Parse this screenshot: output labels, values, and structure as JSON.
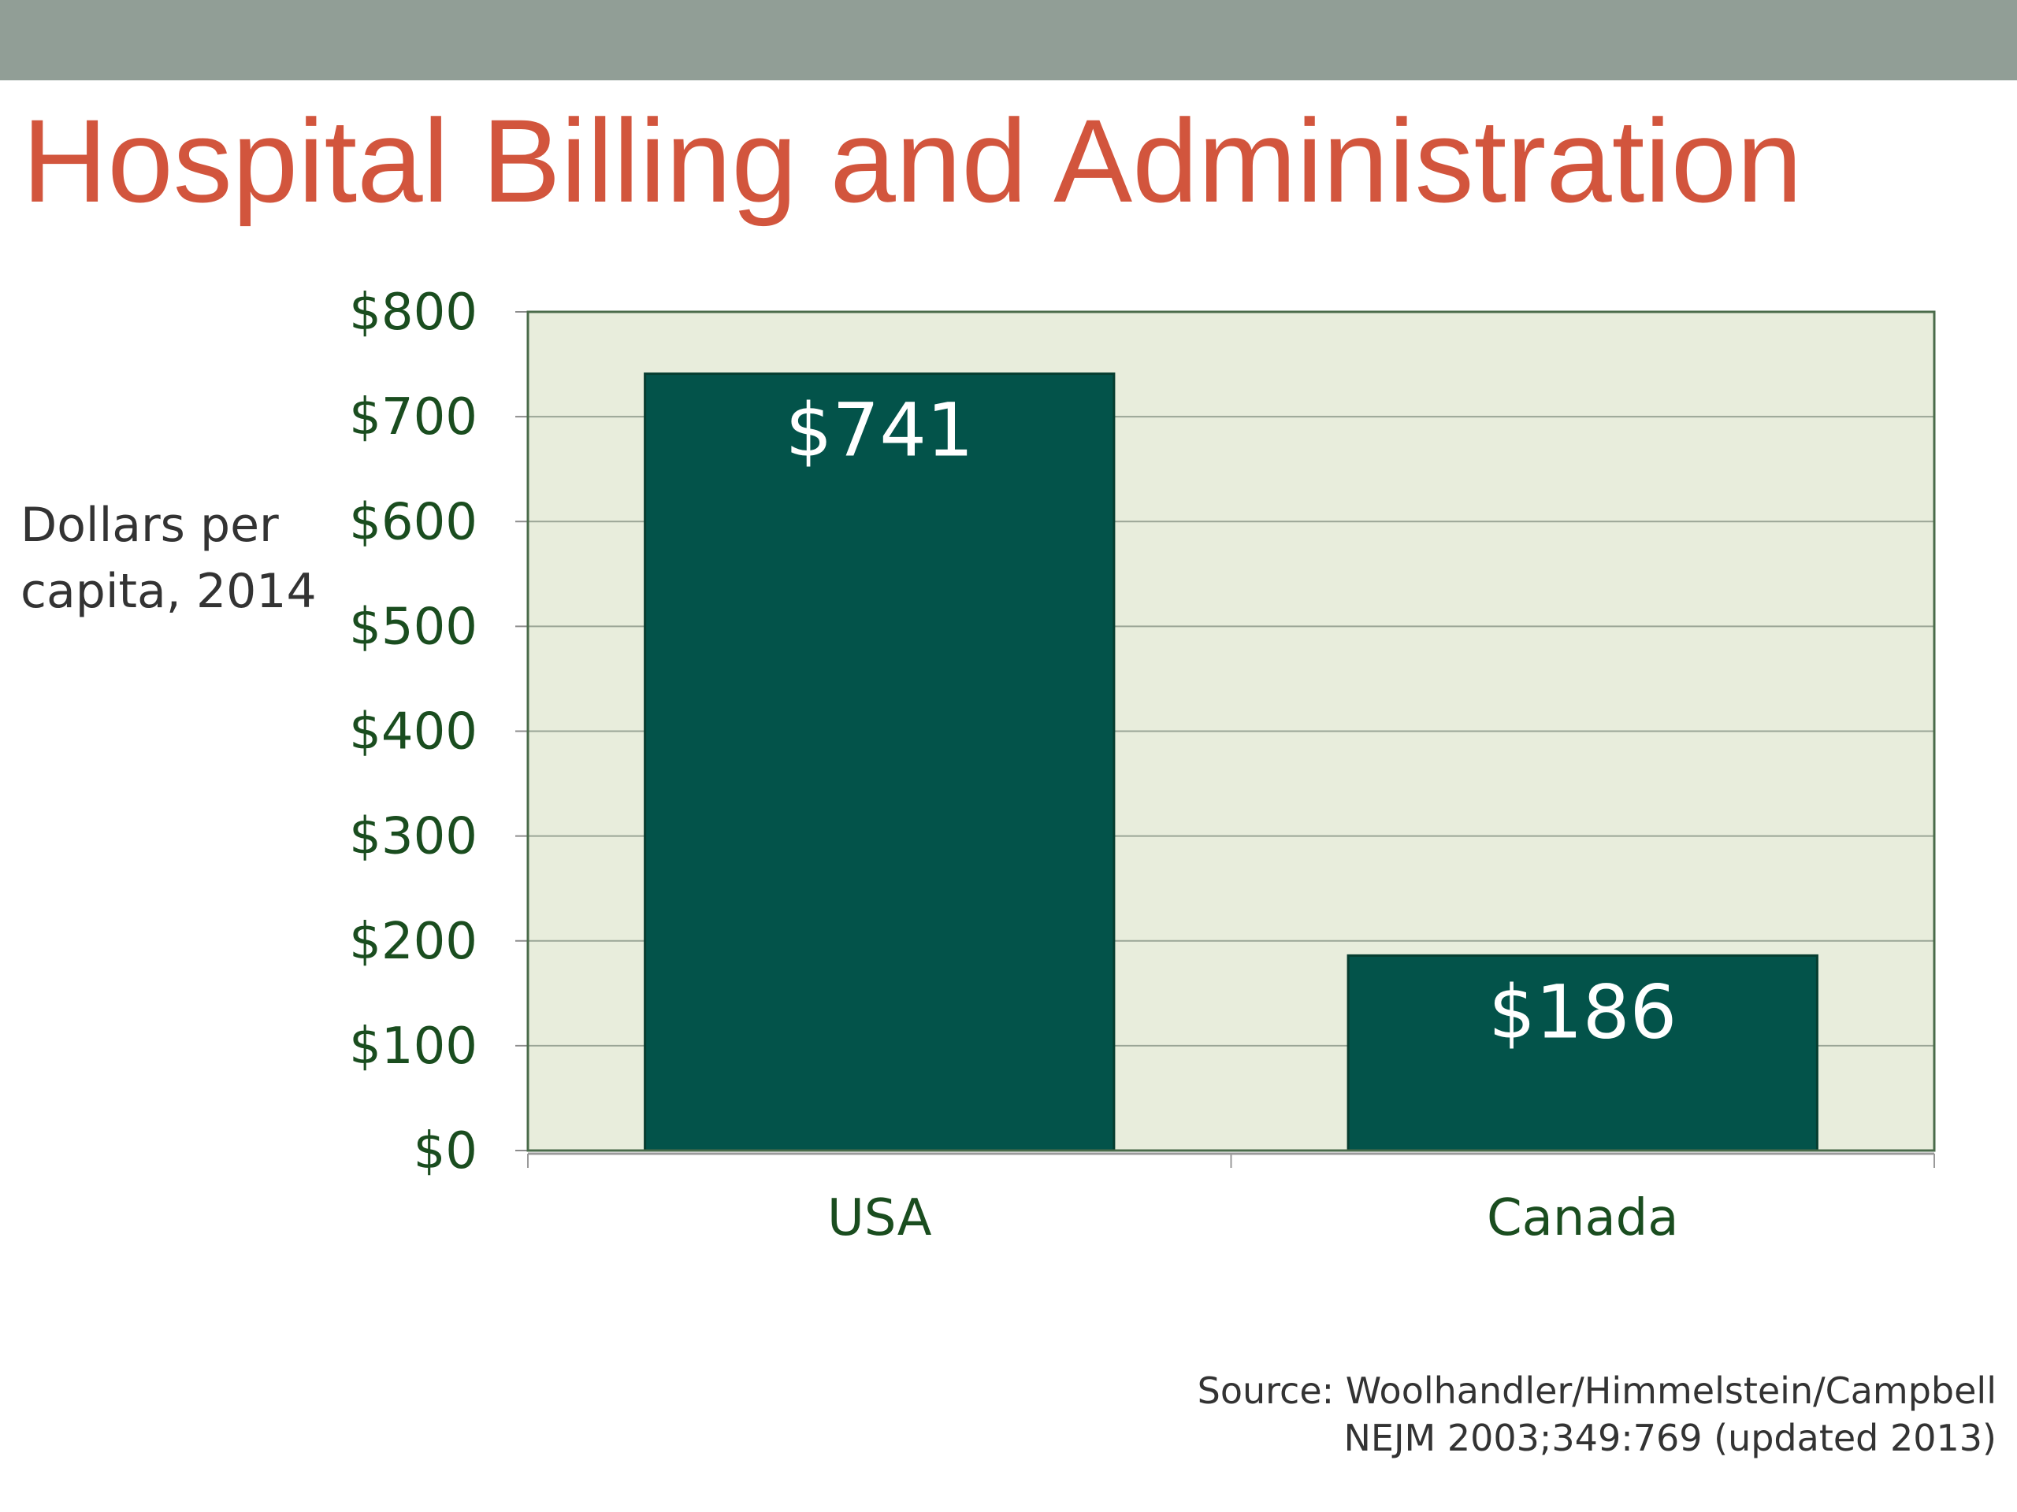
{
  "slide": {
    "title": "Hospital Billing and Administration"
  },
  "colors": {
    "title": "#d2553d",
    "top_bar": "#919e96",
    "plot_background": "#e8eddc",
    "bar": "#03534a",
    "axis_text": "#1a4d1f"
  },
  "chart_data": {
    "type": "bar",
    "title": "",
    "xlabel": "",
    "ylabel_lines": [
      "Dollars per",
      "capita, 2014"
    ],
    "categories": [
      "USA",
      "Canada"
    ],
    "values": [
      741,
      186
    ],
    "data_labels": [
      "$741",
      "$186"
    ],
    "ylim": [
      0,
      800
    ],
    "yticks": [
      0,
      100,
      200,
      300,
      400,
      500,
      600,
      700,
      800
    ],
    "ytick_labels": [
      "$0",
      "$100",
      "$200",
      "$300",
      "$400",
      "$500",
      "$600",
      "$700",
      "$800"
    ],
    "grid": true,
    "legend": "none"
  },
  "source": {
    "line1": "Source: Woolhandler/Himmelstein/Campbell",
    "line2": "NEJM 2003;349:769 (updated 2013)"
  }
}
